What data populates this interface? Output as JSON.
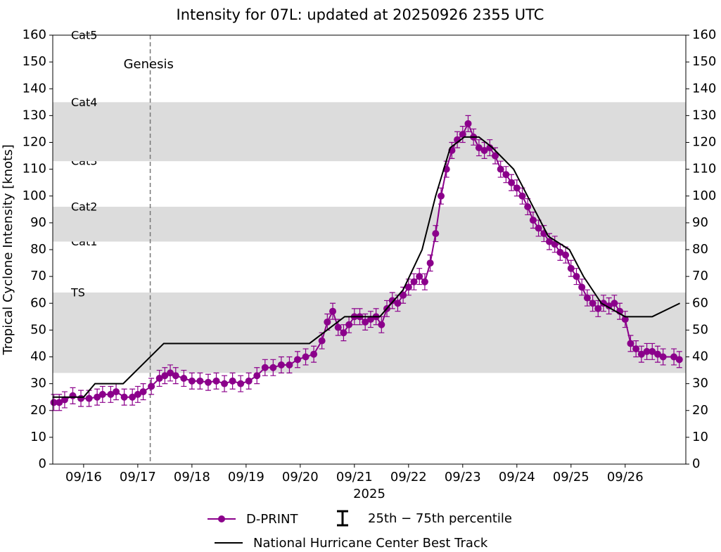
{
  "chart_data": {
    "type": "line",
    "title": "Intensity for 07L: updated at 20250926 2355 UTC",
    "xlabel": "2025",
    "ylabel": "Tropical Cyclone Intensity [knots]",
    "xlim": [
      15.43,
      27.12
    ],
    "xticks": [
      {
        "value": 16,
        "label": "09/16"
      },
      {
        "value": 17,
        "label": "09/17"
      },
      {
        "value": 18,
        "label": "09/18"
      },
      {
        "value": 19,
        "label": "09/19"
      },
      {
        "value": 20,
        "label": "09/20"
      },
      {
        "value": 21,
        "label": "09/21"
      },
      {
        "value": 22,
        "label": "09/22"
      },
      {
        "value": 23,
        "label": "09/23"
      },
      {
        "value": 24,
        "label": "09/24"
      },
      {
        "value": 25,
        "label": "09/25"
      },
      {
        "value": 26,
        "label": "09/26"
      }
    ],
    "ylim": [
      0,
      160
    ],
    "yticks": [
      0,
      10,
      20,
      30,
      40,
      50,
      60,
      70,
      80,
      90,
      100,
      110,
      120,
      130,
      140,
      150,
      160
    ],
    "y2lim": [
      0,
      160
    ],
    "y2ticks": [
      0,
      10,
      20,
      30,
      40,
      50,
      60,
      70,
      80,
      90,
      100,
      110,
      120,
      130,
      140,
      150,
      160
    ],
    "bands": [
      {
        "label": "TS",
        "min": 34,
        "max": 64,
        "shaded": true
      },
      {
        "label": "Cat1",
        "min": 64,
        "max": 83,
        "shaded": false
      },
      {
        "label": "Cat2",
        "min": 83,
        "max": 96,
        "shaded": true
      },
      {
        "label": "Cat3",
        "min": 96,
        "max": 113,
        "shaded": false
      },
      {
        "label": "Cat4",
        "min": 113,
        "max": 135,
        "shaded": true
      },
      {
        "label": "Cat5",
        "min": 135,
        "max": 160,
        "shaded": false
      }
    ],
    "band_color": "#dcdcdc",
    "genesis": {
      "label": "Genesis",
      "x": 17.23,
      "color": "#708090"
    },
    "series": [
      {
        "name": "D-PRINT",
        "color": "#8b008b",
        "marker": true,
        "x": [
          15.45,
          15.55,
          15.65,
          15.8,
          15.95,
          16.1,
          16.25,
          16.35,
          16.5,
          16.6,
          16.75,
          16.9,
          17.0,
          17.1,
          17.25,
          17.4,
          17.5,
          17.6,
          17.7,
          17.85,
          18.0,
          18.15,
          18.3,
          18.45,
          18.6,
          18.75,
          18.9,
          19.05,
          19.2,
          19.35,
          19.5,
          19.65,
          19.8,
          19.95,
          20.1,
          20.25,
          20.4,
          20.5,
          20.6,
          20.7,
          20.8,
          20.9,
          21.0,
          21.1,
          21.2,
          21.3,
          21.4,
          21.5,
          21.6,
          21.7,
          21.8,
          21.9,
          22.0,
          22.1,
          22.2,
          22.3,
          22.4,
          22.5,
          22.6,
          22.7,
          22.8,
          22.9,
          23.0,
          23.1,
          23.2,
          23.3,
          23.4,
          23.5,
          23.6,
          23.7,
          23.8,
          23.9,
          24.0,
          24.1,
          24.2,
          24.3,
          24.4,
          24.5,
          24.6,
          24.7,
          24.8,
          24.9,
          25.0,
          25.1,
          25.2,
          25.3,
          25.4,
          25.5,
          25.6,
          25.7,
          25.8,
          25.9,
          26.0,
          26.1,
          26.2,
          26.3,
          26.4,
          26.5,
          26.6,
          26.7,
          26.9,
          27.0
        ],
        "values": [
          23,
          23,
          24,
          25.5,
          24.5,
          24.5,
          25,
          26,
          26,
          27,
          25,
          25,
          26,
          27,
          29,
          32,
          33,
          34,
          33,
          32,
          31,
          31,
          30.5,
          31,
          30,
          31,
          30,
          31,
          33,
          36,
          36,
          37,
          37,
          39,
          40,
          41,
          46,
          53,
          57,
          51,
          49,
          52,
          55,
          55,
          53,
          54,
          55,
          52,
          58,
          61,
          60,
          63,
          66,
          68,
          70,
          68,
          75,
          86,
          100,
          110,
          117,
          121,
          123,
          127,
          122,
          118,
          117,
          118,
          115,
          110,
          108,
          105,
          103,
          100,
          96,
          91,
          88,
          86,
          83,
          82,
          79,
          78,
          73,
          70,
          66,
          62,
          60,
          58,
          60,
          59,
          60,
          57,
          54,
          45,
          43,
          41,
          42,
          42,
          41,
          40,
          40,
          39
        ],
        "low": [
          20,
          20,
          21,
          22.5,
          21.5,
          21.5,
          22,
          23,
          23,
          24,
          22,
          22,
          23,
          24,
          26,
          29,
          30,
          31,
          30,
          29,
          28,
          28,
          27.5,
          28,
          27,
          28,
          27,
          28,
          30,
          33,
          33,
          34,
          34,
          36,
          37,
          38,
          43,
          50,
          54,
          48,
          46,
          49,
          52,
          52,
          50,
          51,
          52,
          49,
          55,
          58,
          57,
          60,
          63,
          65,
          67,
          65,
          72,
          83,
          97,
          107,
          114,
          118,
          120,
          124,
          119,
          115,
          114,
          115,
          112,
          107,
          105,
          102,
          100,
          97,
          93,
          88,
          85,
          83,
          80,
          79,
          76,
          75,
          70,
          67,
          63,
          59,
          57,
          55,
          57,
          56,
          57,
          54,
          51,
          42,
          40,
          38,
          39,
          39,
          38,
          37,
          37,
          36
        ],
        "high": [
          26,
          26,
          27,
          28.5,
          27.5,
          27.5,
          28,
          29,
          29,
          30,
          28,
          28,
          29,
          30,
          32,
          35,
          36,
          37,
          36,
          35,
          34,
          34,
          33.5,
          34,
          33,
          34,
          33,
          34,
          36,
          39,
          39,
          40,
          40,
          42,
          43,
          44,
          49,
          56,
          60,
          54,
          52,
          55,
          58,
          58,
          56,
          57,
          58,
          55,
          61,
          64,
          63,
          66,
          69,
          71,
          73,
          71,
          78,
          89,
          103,
          113,
          120,
          124,
          126,
          130,
          125,
          121,
          120,
          121,
          118,
          113,
          111,
          108,
          106,
          103,
          99,
          94,
          91,
          89,
          86,
          85,
          82,
          81,
          76,
          73,
          69,
          65,
          63,
          61,
          63,
          62,
          63,
          60,
          57,
          48,
          46,
          44,
          45,
          45,
          44,
          43,
          43,
          42
        ]
      },
      {
        "name": "National Hurricane Center Best Track",
        "color": "#000000",
        "marker": false,
        "x": [
          15.43,
          16.0,
          16.21,
          16.73,
          17.48,
          20.17,
          20.82,
          21.47,
          21.9,
          22.25,
          22.5,
          22.77,
          23.03,
          23.3,
          23.55,
          23.94,
          24.58,
          24.97,
          25.23,
          25.56,
          26.0,
          26.5,
          27.01
        ],
        "values": [
          25,
          25,
          30,
          30,
          45,
          45,
          55,
          55,
          65,
          80,
          100,
          118,
          122,
          122,
          118,
          110,
          85,
          80,
          70,
          60,
          55,
          55,
          60
        ]
      }
    ],
    "errorbar_legend": "25th − 75th percentile"
  }
}
